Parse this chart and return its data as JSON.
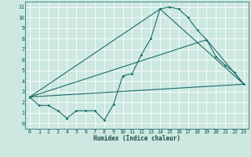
{
  "xlabel": "Humidex (Indice chaleur)",
  "background_color": "#cce8e0",
  "grid_color": "#ffffff",
  "line_color": "#1a6b6b",
  "xlim": [
    -0.5,
    23.5
  ],
  "ylim": [
    -0.5,
    11.5
  ],
  "xticks": [
    0,
    1,
    2,
    3,
    4,
    5,
    6,
    7,
    8,
    9,
    10,
    11,
    12,
    13,
    14,
    15,
    16,
    17,
    18,
    19,
    20,
    21,
    22,
    23
  ],
  "yticks": [
    0,
    1,
    2,
    3,
    4,
    5,
    6,
    7,
    8,
    9,
    10,
    11
  ],
  "line1_x": [
    0,
    1,
    2,
    3,
    4,
    5,
    6,
    7,
    8,
    9,
    10,
    11,
    12,
    13,
    14,
    15,
    16,
    17,
    18,
    19,
    20,
    21,
    22,
    23
  ],
  "line1_y": [
    2.5,
    1.7,
    1.7,
    1.2,
    0.5,
    1.2,
    1.2,
    1.2,
    0.3,
    1.8,
    4.5,
    4.7,
    6.5,
    8.0,
    10.8,
    11.0,
    10.8,
    10.0,
    8.8,
    7.9,
    6.3,
    5.5,
    4.8,
    3.7
  ],
  "line2_x": [
    0,
    23
  ],
  "line2_y": [
    2.5,
    3.7
  ],
  "line3_x": [
    0,
    19,
    23
  ],
  "line3_y": [
    2.5,
    7.9,
    3.7
  ],
  "line4_x": [
    0,
    14,
    23
  ],
  "line4_y": [
    2.5,
    10.8,
    3.7
  ],
  "xlabel_fontsize": 5.5,
  "tick_fontsize": 4.8,
  "line_width": 0.8,
  "marker_size": 1.8
}
